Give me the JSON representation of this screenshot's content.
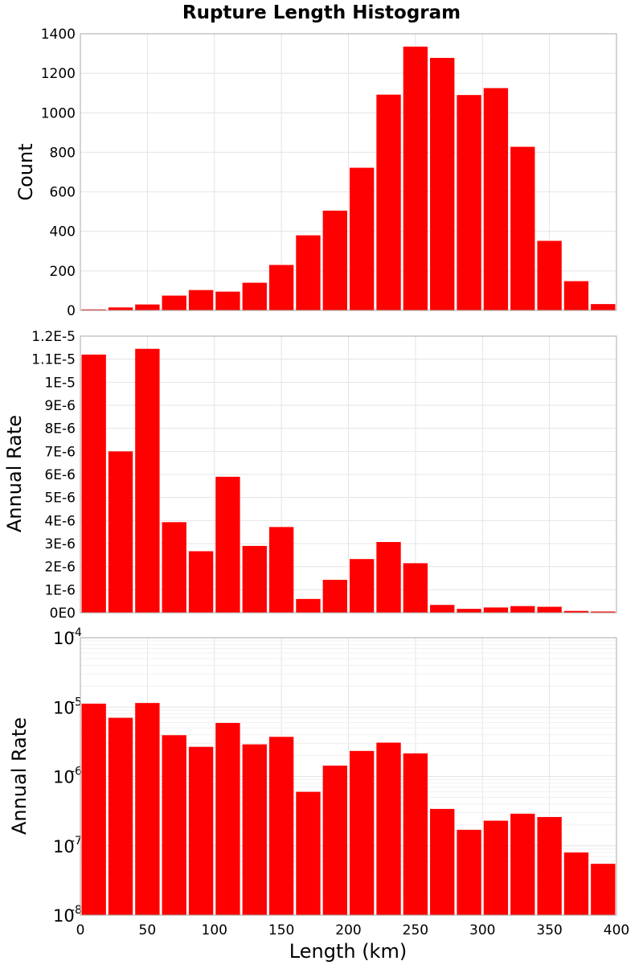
{
  "figure": {
    "title": "Rupture Length Histogram",
    "xlabel": "Length (km)"
  },
  "colors": {
    "bar": "#ff0000",
    "frame": "#aaaaaa",
    "grid": "#e4e4e4"
  },
  "chart_data": [
    {
      "type": "bar",
      "ylabel": "Count",
      "bin_width": 20,
      "x": [
        10,
        30,
        50,
        70,
        90,
        110,
        130,
        150,
        170,
        190,
        210,
        230,
        250,
        270,
        290,
        310,
        330,
        350,
        370,
        390
      ],
      "values": [
        5,
        15,
        30,
        75,
        103,
        95,
        140,
        230,
        380,
        505,
        722,
        1092,
        1335,
        1278,
        1090,
        1125,
        828,
        352,
        148,
        32
      ],
      "xlim": [
        0,
        400
      ],
      "ylim": [
        0,
        1400
      ],
      "yticks": [
        "0",
        "200",
        "400",
        "600",
        "800",
        "1000",
        "1200",
        "1400"
      ],
      "grid": true
    },
    {
      "type": "bar",
      "ylabel": "Annual Rate",
      "bin_width": 20,
      "x": [
        10,
        30,
        50,
        70,
        90,
        110,
        130,
        150,
        170,
        190,
        210,
        230,
        250,
        270,
        290,
        310,
        330,
        350,
        370,
        390
      ],
      "values": [
        1.12e-05,
        7e-06,
        1.145e-05,
        3.93e-06,
        2.67e-06,
        5.9e-06,
        2.9e-06,
        3.72e-06,
        6e-07,
        1.43e-06,
        2.33e-06,
        3.07e-06,
        2.15e-06,
        3.4e-07,
        1.7e-07,
        2.3e-07,
        2.9e-07,
        2.6e-07,
        8e-08,
        5.5e-08
      ],
      "xlim": [
        0,
        400
      ],
      "ylim": [
        0,
        1.2e-05
      ],
      "yticks": [
        "0E0",
        "1E-6",
        "2E-6",
        "3E-6",
        "4E-6",
        "5E-6",
        "6E-6",
        "7E-6",
        "8E-6",
        "9E-6",
        "1E-5",
        "1.1E-5",
        "1.2E-5"
      ],
      "grid": true
    },
    {
      "type": "bar",
      "ylabel": "Annual Rate",
      "yscale": "log",
      "bin_width": 20,
      "x": [
        10,
        30,
        50,
        70,
        90,
        110,
        130,
        150,
        170,
        190,
        210,
        230,
        250,
        270,
        290,
        310,
        330,
        350,
        370,
        390
      ],
      "values": [
        1.12e-05,
        7e-06,
        1.145e-05,
        3.93e-06,
        2.67e-06,
        5.9e-06,
        2.9e-06,
        3.72e-06,
        6e-07,
        1.43e-06,
        2.33e-06,
        3.07e-06,
        2.15e-06,
        3.4e-07,
        1.7e-07,
        2.3e-07,
        2.9e-07,
        2.6e-07,
        8e-08,
        5.5e-08
      ],
      "xlim": [
        0,
        400
      ],
      "ylim": [
        1e-08,
        0.0001
      ],
      "yticks_base": [
        "10",
        "10",
        "10",
        "10",
        "10"
      ],
      "yticks_exp": [
        "-8",
        "-7",
        "-6",
        "-5",
        "-4"
      ],
      "xticks": [
        "0",
        "50",
        "100",
        "150",
        "200",
        "250",
        "300",
        "350",
        "400"
      ],
      "grid": true
    }
  ]
}
